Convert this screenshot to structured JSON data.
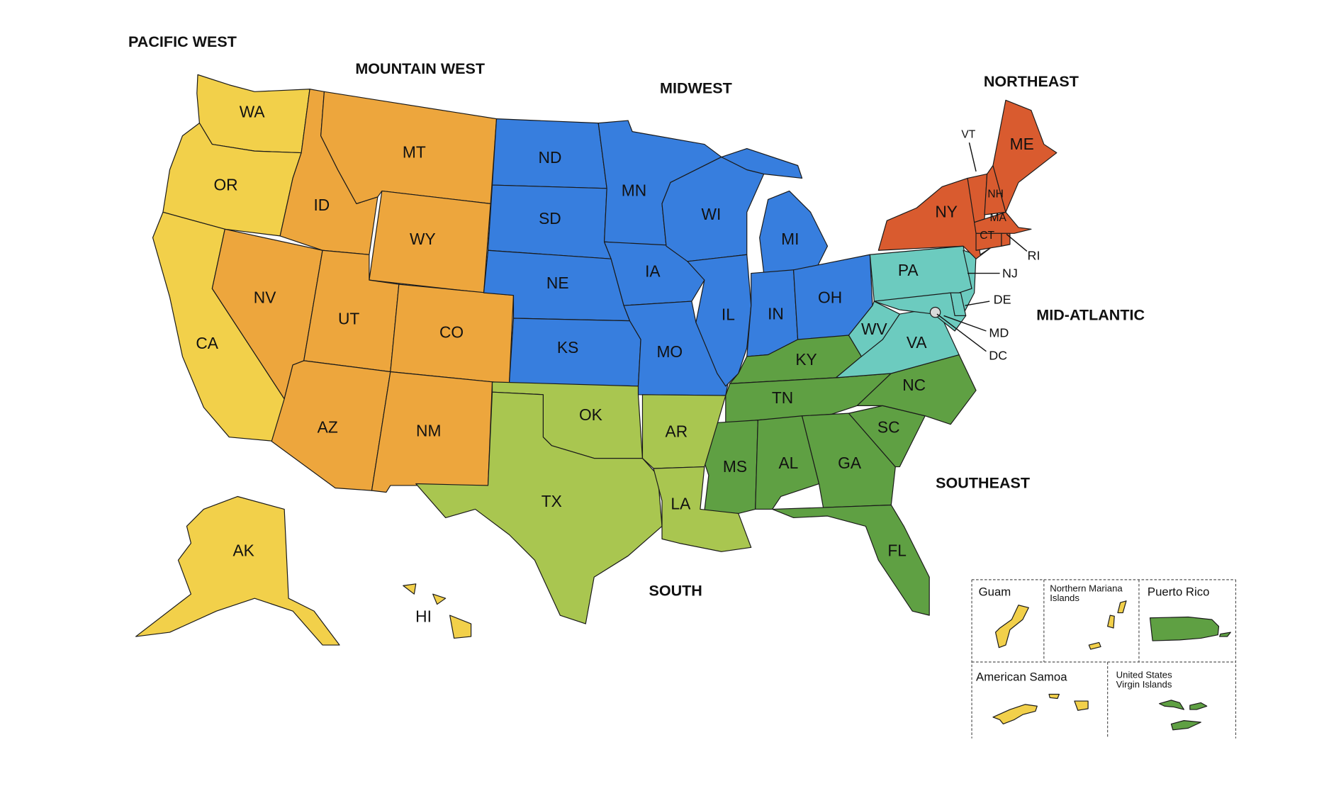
{
  "regions": [
    {
      "id": "pacific-west",
      "label": "PACIFIC WEST",
      "color": "#F2D04A",
      "states": [
        "WA",
        "OR",
        "CA",
        "AK",
        "HI"
      ]
    },
    {
      "id": "mountain-west",
      "label": "MOUNTAIN WEST",
      "color": "#EDA63D",
      "states": [
        "MT",
        "ID",
        "WY",
        "NV",
        "UT",
        "CO",
        "AZ",
        "NM"
      ]
    },
    {
      "id": "midwest",
      "label": "MIDWEST",
      "color": "#377EDE",
      "states": [
        "ND",
        "SD",
        "NE",
        "KS",
        "MN",
        "IA",
        "MO",
        "WI",
        "IL",
        "MI",
        "IN",
        "OH"
      ]
    },
    {
      "id": "northeast",
      "label": "NORTHEAST",
      "color": "#D95B2F",
      "states": [
        "NY",
        "VT",
        "NH",
        "ME",
        "MA",
        "CT",
        "RI"
      ]
    },
    {
      "id": "mid-atlantic",
      "label": "MID-ATLANTIC",
      "color": "#6CCBBF",
      "states": [
        "PA",
        "NJ",
        "DE",
        "MD",
        "DC",
        "WV",
        "VA"
      ]
    },
    {
      "id": "southeast",
      "label": "SOUTHEAST",
      "color": "#5FA043",
      "states": [
        "KY",
        "TN",
        "NC",
        "SC",
        "GA",
        "AL",
        "MS",
        "FL"
      ]
    },
    {
      "id": "south",
      "label": "SOUTH",
      "color": "#A9C650",
      "states": [
        "OK",
        "TX",
        "AR",
        "LA"
      ]
    }
  ],
  "dc_marker_color": "#D9D9D9",
  "territories": [
    {
      "id": "guam",
      "label": "Guam",
      "region": "pacific-west"
    },
    {
      "id": "northern-mariana-islands",
      "label": "Northern Mariana Islands",
      "region": "pacific-west"
    },
    {
      "id": "puerto-rico",
      "label": "Puerto Rico",
      "region": "southeast"
    },
    {
      "id": "american-samoa",
      "label": "American Samoa",
      "region": "pacific-west"
    },
    {
      "id": "us-virgin-islands",
      "label": "United States Virgin Islands",
      "region": "southeast"
    }
  ]
}
